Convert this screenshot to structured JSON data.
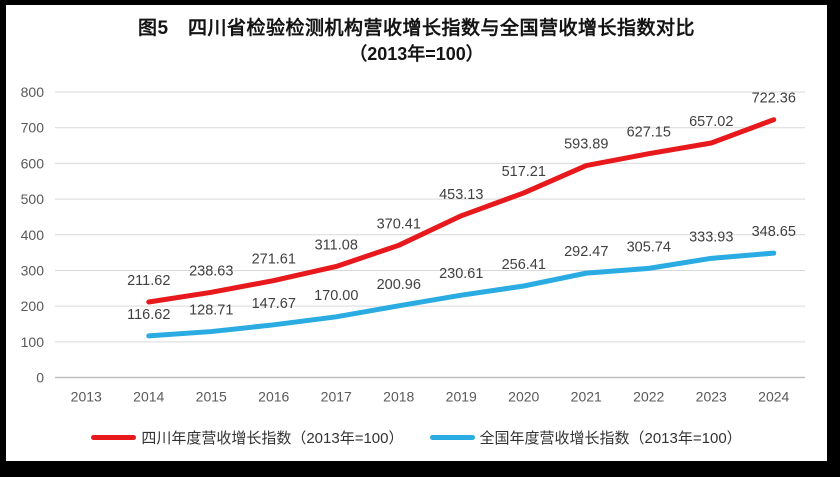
{
  "frame": {
    "border_color": "#000000",
    "panel_background": "#ffffff"
  },
  "title": {
    "line1": "图5　四川省检验检测机构营收增长指数与全国营收增长指数对比",
    "line2": "（2013年=100）"
  },
  "chart_data": {
    "type": "line",
    "categories": [
      "2013",
      "2014",
      "2015",
      "2016",
      "2017",
      "2018",
      "2019",
      "2020",
      "2021",
      "2022",
      "2023",
      "2024"
    ],
    "series": [
      {
        "name": "四川年度营收增长指数（2013年=100）",
        "color": "#e8191d",
        "start_index": 1,
        "values": [
          211.62,
          238.63,
          271.61,
          311.08,
          370.41,
          453.13,
          517.21,
          593.89,
          627.15,
          657.02,
          722.36
        ]
      },
      {
        "name": "全国年度营收增长指数（2013年=100）",
        "color": "#2aabe2",
        "start_index": 1,
        "values": [
          116.62,
          128.71,
          147.67,
          170.0,
          200.96,
          230.61,
          256.41,
          292.47,
          305.74,
          333.93,
          348.65
        ]
      }
    ],
    "ylim": [
      0,
      800
    ],
    "ytick_step": 100,
    "ytick_labels": [
      "0",
      "100",
      "200",
      "300",
      "400",
      "500",
      "600",
      "700",
      "800"
    ],
    "grid": true,
    "data_labels": true,
    "data_label_decimals": 2,
    "legend_position": "bottom",
    "colors": {
      "gridline": "#d9d9d9",
      "axis_line": "#bfbfbf",
      "tick_label": "#595959",
      "data_label": "#404040"
    }
  }
}
